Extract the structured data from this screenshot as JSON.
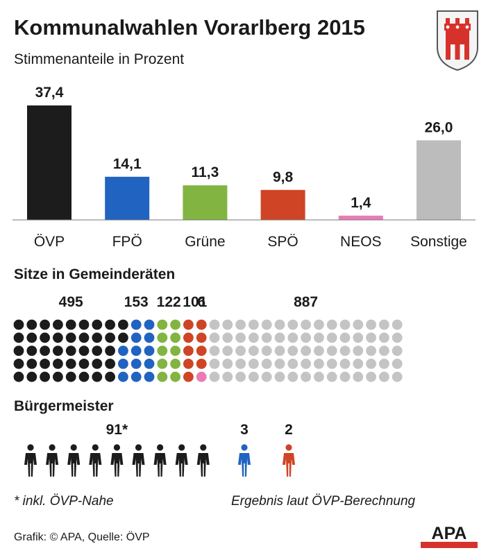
{
  "header": {
    "title": "Kommunalwahlen Vorarlberg 2015",
    "subtitle": "Stimmenanteile in Prozent"
  },
  "chart_data": [
    {
      "type": "bar",
      "title": "Kommunalwahlen Vorarlberg 2015",
      "subtitle": "Stimmenanteile in Prozent",
      "categories": [
        "ÖVP",
        "FPÖ",
        "Grüne",
        "SPÖ",
        "NEOS",
        "Sonstige"
      ],
      "values": [
        37.4,
        14.1,
        11.3,
        9.8,
        1.4,
        26.0
      ],
      "value_labels": [
        "37,4",
        "14,1",
        "11,3",
        "9,8",
        "1,4",
        "26,0"
      ],
      "colors": [
        "#1c1c1c",
        "#2163c1",
        "#82b441",
        "#cf4425",
        "#e97cb4",
        "#bcbcbc"
      ],
      "xlabel": "",
      "ylabel": "",
      "ylim": [
        0,
        37.4
      ],
      "grid": false,
      "legend": "none"
    },
    {
      "type": "waffle",
      "title": "Sitze in Gemeinderäten",
      "categories": [
        "ÖVP",
        "FPÖ",
        "Grüne",
        "SPÖ",
        "NEOS",
        "Sonstige"
      ],
      "values": [
        495,
        153,
        122,
        101,
        6,
        887
      ],
      "value_labels": [
        "495",
        "153",
        "122",
        "101",
        "6",
        "887"
      ],
      "colors": [
        "#1c1c1c",
        "#2163c1",
        "#82b441",
        "#cf4425",
        "#e97cb4",
        "#c4c4c4"
      ]
    },
    {
      "type": "pictogram",
      "title": "Bürgermeister",
      "series": [
        {
          "value": 91,
          "value_label": "91*",
          "color": "#1c1c1c"
        },
        {
          "value": 3,
          "value_label": "3",
          "color": "#2163c1"
        },
        {
          "value": 2,
          "value_label": "2",
          "color": "#cf4425"
        }
      ]
    }
  ],
  "footnotes": {
    "note_left": "* inkl. ÖVP-Nahe",
    "note_right": "Ergebnis laut ÖVP-Berechnung"
  },
  "source": "Grafik: © APA, Quelle: ÖVP",
  "logo": {
    "text": "APA",
    "color": "#d6322b"
  },
  "crest": {
    "icon": "vorarlberg-coat-of-arms-icon",
    "color": "#d6322b"
  }
}
